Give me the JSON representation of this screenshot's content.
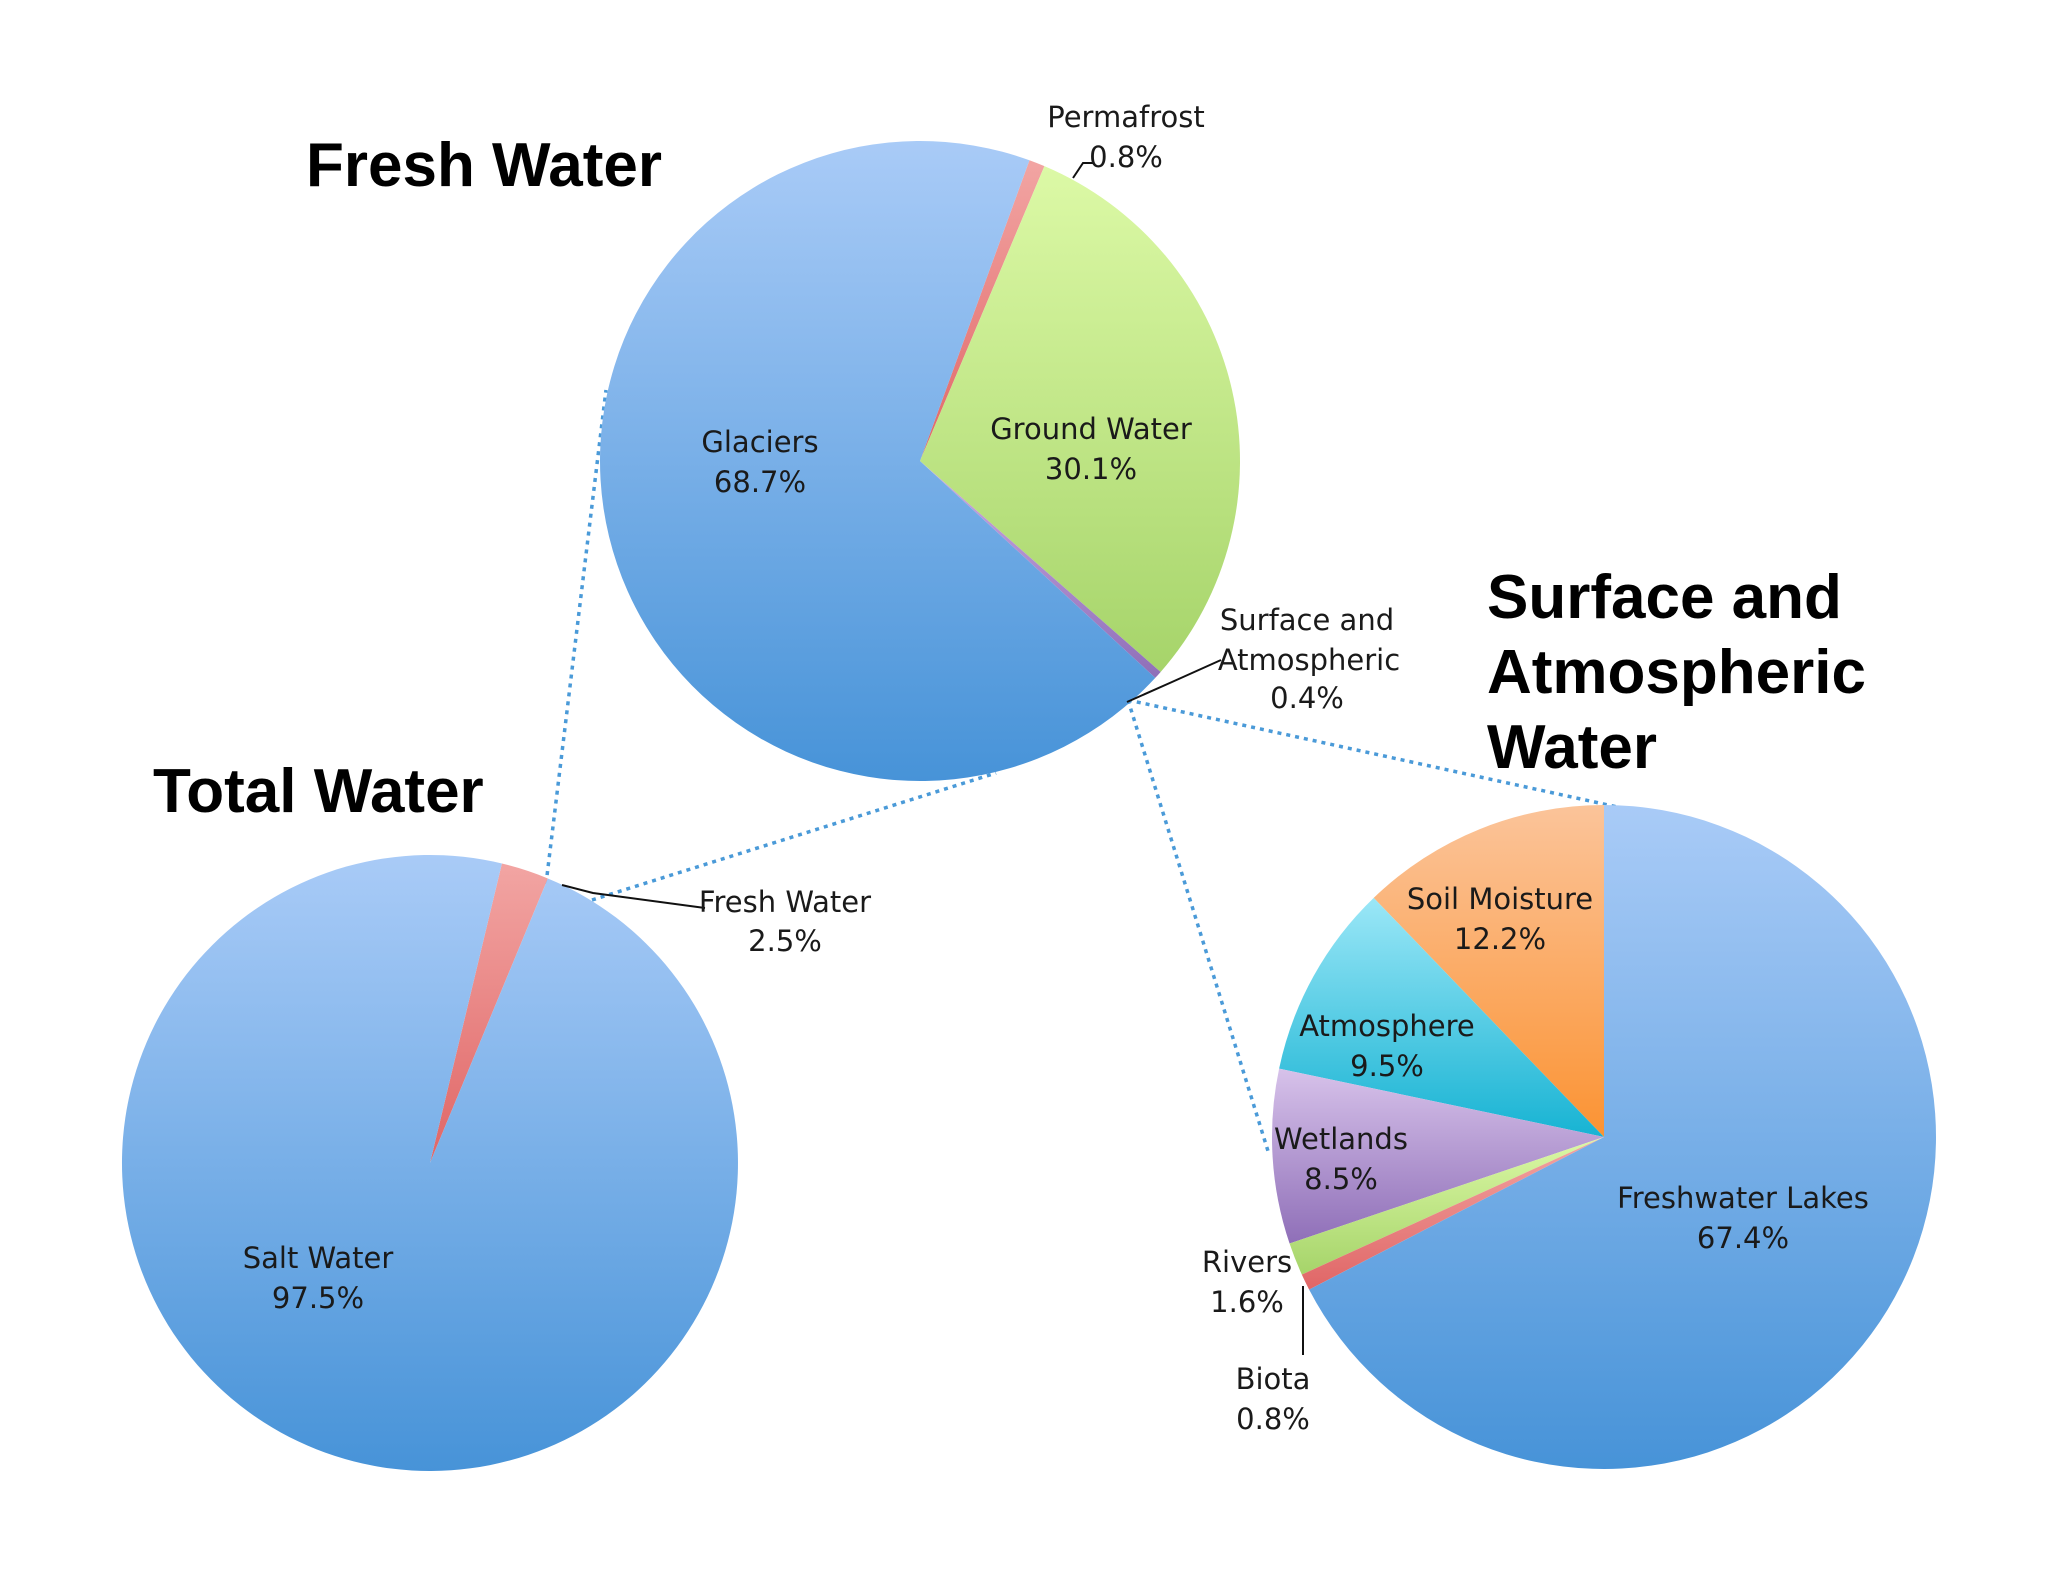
{
  "colors": {
    "blue_light": "#a9cbf7",
    "blue_dark": "#4793d8",
    "red_light": "#f2a5a3",
    "red_dark": "#e06666",
    "green_light": "#dcf9a6",
    "green_dark": "#a6d46a",
    "purple": "#c9a8e0",
    "cyan_light": "#9be7f7",
    "cyan_dark": "#17b3d3",
    "orange_light": "#fbc49a",
    "orange_dark": "#fb9333",
    "lilac_light": "#d7c2ea",
    "lilac_dark": "#8f6fb8",
    "leader_dots": "#4a9ad8"
  },
  "chart_data": [
    {
      "type": "pie",
      "id": "total",
      "title": "Total Water",
      "slices": [
        {
          "name": "Salt Water",
          "value": 97.5,
          "value_label": "97.5%",
          "color": "blue"
        },
        {
          "name": "Fresh Water",
          "value": 2.5,
          "value_label": "2.5%",
          "color": "red"
        }
      ]
    },
    {
      "type": "pie",
      "id": "fresh",
      "title": "Fresh Water",
      "slices": [
        {
          "name": "Glaciers",
          "value": 68.7,
          "value_label": "68.7%",
          "color": "blue"
        },
        {
          "name": "Permafrost",
          "value": 0.8,
          "value_label": "0.8%",
          "color": "red"
        },
        {
          "name": "Ground Water",
          "value": 30.1,
          "value_label": "30.1%",
          "color": "green"
        },
        {
          "name": "Surface and Atmospheric",
          "value": 0.4,
          "value_label": "0.4%",
          "color": "purple"
        }
      ]
    },
    {
      "type": "pie",
      "id": "surface",
      "title_lines": [
        "Surface and",
        "Atmospheric",
        "Water"
      ],
      "slices": [
        {
          "name": "Freshwater Lakes",
          "value": 67.4,
          "value_label": "67.4%",
          "color": "blue"
        },
        {
          "name": "Soil Moisture",
          "value": 12.2,
          "value_label": "12.2%",
          "color": "orange"
        },
        {
          "name": "Atmosphere",
          "value": 9.5,
          "value_label": "9.5%",
          "color": "cyan"
        },
        {
          "name": "Wetlands",
          "value": 8.5,
          "value_label": "8.5%",
          "color": "lilac"
        },
        {
          "name": "Rivers",
          "value": 1.6,
          "value_label": "1.6%",
          "color": "green"
        },
        {
          "name": "Biota",
          "value": 0.8,
          "value_label": "0.8%",
          "color": "red"
        }
      ]
    }
  ]
}
